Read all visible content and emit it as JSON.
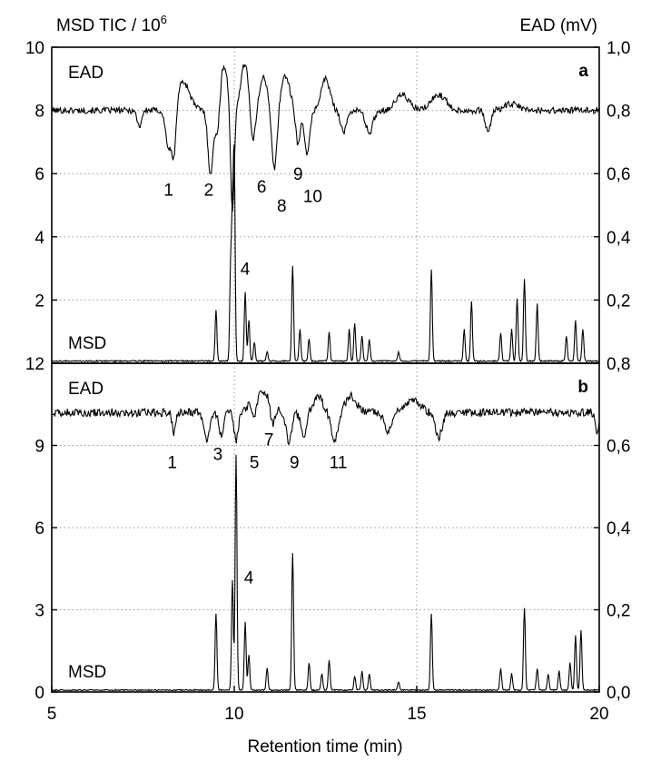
{
  "chart_data": {
    "type": "line",
    "xlabel": "Retention time (min)",
    "left_axis_title": "MSD TIC / 10",
    "left_axis_title_exp": "6",
    "right_axis_title": "EAD (mV)",
    "x_ticks": [
      "5",
      "10",
      "15",
      "20"
    ],
    "xlim": [
      5,
      20
    ],
    "grid": true,
    "panels": [
      {
        "id": "a",
        "tag": "a",
        "ead_label": "EAD",
        "msd_label": "MSD",
        "left_ylim": [
          0,
          10
        ],
        "left_ticks": [
          "2",
          "4",
          "6",
          "8",
          "10"
        ],
        "right_ylim": [
          0,
          1.0
        ],
        "right_ticks": [
          "0,2",
          "0,4",
          "0,6",
          "0,8",
          "1,0"
        ],
        "ead_baseline": 0.8,
        "ead_dips": [
          [
            7.4,
            -0.05,
            0.06
          ],
          [
            8.2,
            -0.12,
            0.08
          ],
          [
            8.35,
            -0.16,
            0.06
          ],
          [
            9.35,
            -0.2,
            0.07
          ],
          [
            9.55,
            -0.12,
            0.07
          ],
          [
            9.95,
            -0.34,
            0.05
          ],
          [
            10.5,
            -0.13,
            0.07
          ],
          [
            11.1,
            -0.19,
            0.07
          ],
          [
            11.75,
            -0.11,
            0.06
          ],
          [
            12.0,
            -0.14,
            0.07
          ],
          [
            13.0,
            -0.07,
            0.08
          ],
          [
            13.7,
            -0.07,
            0.1
          ],
          [
            16.95,
            -0.07,
            0.07
          ],
          [
            8.6,
            0.09,
            0.18
          ],
          [
            9.7,
            0.15,
            0.12
          ],
          [
            10.3,
            0.15,
            0.12
          ],
          [
            10.8,
            0.11,
            0.1
          ],
          [
            11.4,
            0.11,
            0.12
          ],
          [
            12.5,
            0.1,
            0.12
          ],
          [
            14.6,
            0.05,
            0.18
          ],
          [
            15.6,
            0.05,
            0.2
          ],
          [
            17.6,
            0.02,
            0.2
          ]
        ],
        "msd_peaks": [
          [
            9.5,
            1.6
          ],
          [
            9.9,
            2.8
          ],
          [
            9.95,
            4.0
          ],
          [
            10.0,
            6.3
          ],
          [
            10.3,
            2.2
          ],
          [
            10.4,
            1.3
          ],
          [
            10.55,
            0.6
          ],
          [
            10.9,
            0.3
          ],
          [
            11.6,
            3.0
          ],
          [
            11.8,
            1.0
          ],
          [
            12.05,
            0.7
          ],
          [
            12.6,
            0.9
          ],
          [
            13.15,
            1.0
          ],
          [
            13.3,
            1.2
          ],
          [
            13.5,
            0.8
          ],
          [
            13.7,
            0.7
          ],
          [
            14.5,
            0.3
          ],
          [
            15.4,
            2.9
          ],
          [
            16.3,
            1.0
          ],
          [
            16.5,
            1.9
          ],
          [
            17.3,
            0.9
          ],
          [
            17.6,
            1.0
          ],
          [
            17.75,
            2.0
          ],
          [
            17.95,
            2.6
          ],
          [
            18.3,
            1.8
          ],
          [
            19.1,
            0.8
          ],
          [
            19.35,
            1.3
          ],
          [
            19.55,
            1.0
          ]
        ],
        "peak_labels": [
          {
            "text": "1",
            "x": 8.2,
            "y": 0.55
          },
          {
            "text": "2",
            "x": 9.3,
            "y": 0.55
          },
          {
            "text": "4",
            "x": 10.3,
            "y": 0.3
          },
          {
            "text": "6",
            "x": 10.75,
            "y": 0.56
          },
          {
            "text": "8",
            "x": 11.3,
            "y": 0.5
          },
          {
            "text": "9",
            "x": 11.75,
            "y": 0.6
          },
          {
            "text": "10",
            "x": 12.15,
            "y": 0.53
          }
        ]
      },
      {
        "id": "b",
        "tag": "b",
        "ead_label": "EAD",
        "msd_label": "MSD",
        "left_ylim": [
          0,
          12
        ],
        "left_ticks": [
          "0",
          "3",
          "6",
          "9",
          "12"
        ],
        "right_ylim": [
          0,
          0.8
        ],
        "right_ticks": [
          "0,0",
          "0,2",
          "0,4",
          "0,6",
          "0,8"
        ],
        "ead_baseline": 0.68,
        "ead_dips": [
          [
            8.35,
            -0.05,
            0.05
          ],
          [
            9.25,
            -0.07,
            0.08
          ],
          [
            9.65,
            -0.06,
            0.06
          ],
          [
            10.05,
            -0.07,
            0.06
          ],
          [
            10.55,
            -0.05,
            0.06
          ],
          [
            11.05,
            -0.05,
            0.06
          ],
          [
            11.5,
            -0.07,
            0.08
          ],
          [
            11.9,
            -0.06,
            0.07
          ],
          [
            12.75,
            -0.07,
            0.09
          ],
          [
            14.2,
            -0.05,
            0.09
          ],
          [
            15.6,
            -0.06,
            0.09
          ],
          [
            19.95,
            -0.05,
            0.05
          ],
          [
            10.75,
            0.05,
            0.25
          ],
          [
            12.3,
            0.04,
            0.12
          ],
          [
            13.2,
            0.04,
            0.15
          ],
          [
            14.9,
            0.03,
            0.2
          ]
        ],
        "msd_peaks": [
          [
            9.5,
            2.8
          ],
          [
            9.95,
            4.0
          ],
          [
            10.05,
            8.6
          ],
          [
            10.3,
            2.5
          ],
          [
            10.4,
            1.3
          ],
          [
            10.9,
            0.8
          ],
          [
            11.6,
            5.0
          ],
          [
            12.05,
            1.0
          ],
          [
            12.4,
            0.6
          ],
          [
            12.6,
            1.1
          ],
          [
            13.3,
            0.5
          ],
          [
            13.5,
            0.7
          ],
          [
            13.7,
            0.6
          ],
          [
            14.5,
            0.3
          ],
          [
            15.4,
            2.8
          ],
          [
            17.3,
            0.8
          ],
          [
            17.6,
            0.6
          ],
          [
            17.95,
            3.0
          ],
          [
            18.3,
            0.8
          ],
          [
            18.6,
            0.6
          ],
          [
            18.9,
            0.7
          ],
          [
            19.2,
            1.0
          ],
          [
            19.35,
            2.0
          ],
          [
            19.5,
            2.2
          ]
        ],
        "peak_labels": [
          {
            "text": "1",
            "x": 8.3,
            "y": 0.56
          },
          {
            "text": "3",
            "x": 9.55,
            "y": 0.58
          },
          {
            "text": "5",
            "x": 10.55,
            "y": 0.56
          },
          {
            "text": "7",
            "x": 10.95,
            "y": 0.615
          },
          {
            "text": "9",
            "x": 11.65,
            "y": 0.56
          },
          {
            "text": "11",
            "x": 12.85,
            "y": 0.56
          },
          {
            "text": "4",
            "x": 10.4,
            "y": 0.28
          }
        ]
      }
    ]
  }
}
